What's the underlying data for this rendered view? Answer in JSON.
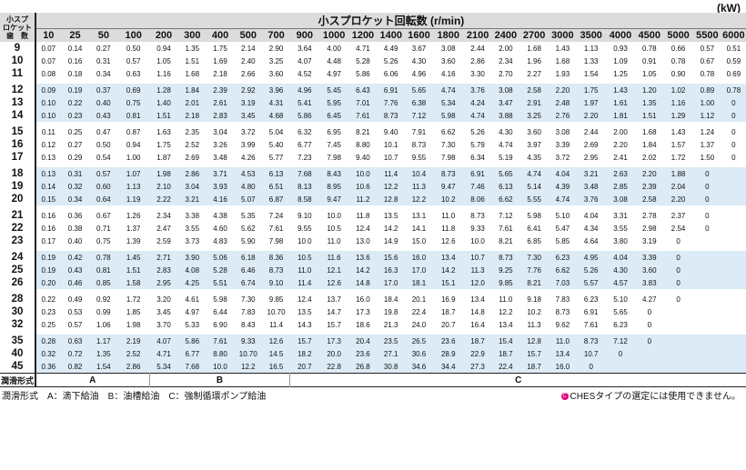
{
  "unit": "(kW)",
  "header": {
    "label_lines": [
      "小スプ",
      "ロケット",
      "歯　数"
    ],
    "title": "小スプロケット回転数 (r/min)",
    "speeds": [
      "10",
      "25",
      "50",
      "100",
      "200",
      "300",
      "400",
      "500",
      "700",
      "900",
      "1000",
      "1200",
      "1400",
      "1600",
      "1800",
      "2100",
      "2400",
      "2700",
      "3000",
      "3500",
      "4000",
      "4500",
      "5000",
      "5500",
      "6000"
    ]
  },
  "groups": [
    {
      "rows": [
        {
          "teeth": "9",
          "values": [
            "0.07",
            "0.14",
            "0.27",
            "0.50",
            "0.94",
            "1.35",
            "1.75",
            "2.14",
            "2.90",
            "3.64",
            "4.00",
            "4.71",
            "4.49",
            "3.67",
            "3.08",
            "2.44",
            "2.00",
            "1.68",
            "1.43",
            "1.13",
            "0.93",
            "0.78",
            "0.66",
            "0.57",
            "0.51"
          ]
        },
        {
          "teeth": "10",
          "values": [
            "0.07",
            "0.16",
            "0.31",
            "0.57",
            "1.05",
            "1.51",
            "1.69",
            "2.40",
            "3.25",
            "4.07",
            "4.48",
            "5.28",
            "5.26",
            "4.30",
            "3.60",
            "2.86",
            "2.34",
            "1.96",
            "1.68",
            "1.33",
            "1.09",
            "0.91",
            "0.78",
            "0.67",
            "0.59"
          ]
        },
        {
          "teeth": "11",
          "values": [
            "0.08",
            "0.18",
            "0.34",
            "0.63",
            "1.16",
            "1.68",
            "2.18",
            "2.66",
            "3.60",
            "4.52",
            "4.97",
            "5.86",
            "6.06",
            "4.96",
            "4.16",
            "3.30",
            "2.70",
            "2.27",
            "1.93",
            "1.54",
            "1.25",
            "1.05",
            "0.90",
            "0.78",
            "0.69"
          ]
        }
      ]
    },
    {
      "rows": [
        {
          "teeth": "12",
          "values": [
            "0.09",
            "0.19",
            "0.37",
            "0.69",
            "1.28",
            "1.84",
            "2.39",
            "2.92",
            "3.96",
            "4.96",
            "5.45",
            "6.43",
            "6.91",
            "5.65",
            "4.74",
            "3.76",
            "3.08",
            "2.58",
            "2.20",
            "1.75",
            "1.43",
            "1.20",
            "1.02",
            "0.89",
            "0.78"
          ]
        },
        {
          "teeth": "13",
          "values": [
            "0.10",
            "0.22",
            "0.40",
            "0.75",
            "1.40",
            "2.01",
            "2.61",
            "3.19",
            "4.31",
            "5.41",
            "5.95",
            "7.01",
            "7.76",
            "6.38",
            "5.34",
            "4.24",
            "3.47",
            "2.91",
            "2.48",
            "1.97",
            "1.61",
            "1.35",
            "1.16",
            "1.00",
            "0"
          ]
        },
        {
          "teeth": "14",
          "values": [
            "0.10",
            "0.23",
            "0.43",
            "0.81",
            "1.51",
            "2.18",
            "2.83",
            "3.45",
            "4.68",
            "5.86",
            "6.45",
            "7.61",
            "8.73",
            "7.12",
            "5.98",
            "4.74",
            "3.88",
            "3.25",
            "2.76",
            "2.20",
            "1.81",
            "1.51",
            "1.29",
            "1.12",
            "0"
          ]
        }
      ]
    },
    {
      "rows": [
        {
          "teeth": "15",
          "values": [
            "0.11",
            "0.25",
            "0.47",
            "0.87",
            "1.63",
            "2.35",
            "3.04",
            "3.72",
            "5.04",
            "6.32",
            "6.95",
            "8.21",
            "9.40",
            "7.91",
            "6.62",
            "5.26",
            "4.30",
            "3.60",
            "3.08",
            "2.44",
            "2.00",
            "1.68",
            "1.43",
            "1.24",
            "0"
          ]
        },
        {
          "teeth": "16",
          "values": [
            "0.12",
            "0.27",
            "0.50",
            "0.94",
            "1.75",
            "2.52",
            "3.26",
            "3.99",
            "5.40",
            "6.77",
            "7.45",
            "8.80",
            "10.1",
            "8.73",
            "7.30",
            "5.79",
            "4.74",
            "3.97",
            "3.39",
            "2.69",
            "2.20",
            "1.84",
            "1.57",
            "1.37",
            "0"
          ]
        },
        {
          "teeth": "17",
          "values": [
            "0.13",
            "0.29",
            "0.54",
            "1.00",
            "1.87",
            "2.69",
            "3.48",
            "4.26",
            "5.77",
            "7.23",
            "7.98",
            "9.40",
            "10.7",
            "9.55",
            "7.98",
            "6.34",
            "5.19",
            "4.35",
            "3.72",
            "2.95",
            "2.41",
            "2.02",
            "1.72",
            "1.50",
            "0"
          ]
        }
      ]
    },
    {
      "rows": [
        {
          "teeth": "18",
          "values": [
            "0.13",
            "0.31",
            "0.57",
            "1.07",
            "1.98",
            "2.86",
            "3.71",
            "4.53",
            "6.13",
            "7.68",
            "8.43",
            "10.0",
            "11.4",
            "10.4",
            "8.73",
            "6.91",
            "5.65",
            "4.74",
            "4.04",
            "3.21",
            "2.63",
            "2.20",
            "1.88",
            "0",
            ""
          ]
        },
        {
          "teeth": "19",
          "values": [
            "0.14",
            "0.32",
            "0.60",
            "1.13",
            "2.10",
            "3.04",
            "3.93",
            "4.80",
            "6.51",
            "8.13",
            "8.95",
            "10.6",
            "12.2",
            "11.3",
            "9.47",
            "7.46",
            "6.13",
            "5.14",
            "4.39",
            "3.48",
            "2.85",
            "2.39",
            "2.04",
            "0",
            ""
          ]
        },
        {
          "teeth": "20",
          "values": [
            "0.15",
            "0.34",
            "0.64",
            "1.19",
            "2.22",
            "3.21",
            "4.16",
            "5.07",
            "6.87",
            "8.58",
            "9.47",
            "11.2",
            "12.8",
            "12.2",
            "10.2",
            "8.06",
            "6.62",
            "5.55",
            "4.74",
            "3.76",
            "3.08",
            "2.58",
            "2.20",
            "0",
            ""
          ]
        }
      ]
    },
    {
      "rows": [
        {
          "teeth": "21",
          "values": [
            "0.16",
            "0.36",
            "0.67",
            "1.26",
            "2.34",
            "3.38",
            "4.38",
            "5.35",
            "7.24",
            "9.10",
            "10.0",
            "11.8",
            "13.5",
            "13.1",
            "11.0",
            "8.73",
            "7.12",
            "5.98",
            "5.10",
            "4.04",
            "3.31",
            "2.78",
            "2.37",
            "0",
            ""
          ]
        },
        {
          "teeth": "22",
          "values": [
            "0.16",
            "0.38",
            "0.71",
            "1.37",
            "2.47",
            "3.55",
            "4.60",
            "5.62",
            "7.61",
            "9.55",
            "10.5",
            "12.4",
            "14.2",
            "14.1",
            "11.8",
            "9.33",
            "7.61",
            "6.41",
            "5.47",
            "4.34",
            "3.55",
            "2.98",
            "2.54",
            "0",
            ""
          ]
        },
        {
          "teeth": "23",
          "values": [
            "0.17",
            "0.40",
            "0.75",
            "1.39",
            "2.59",
            "3.73",
            "4.83",
            "5.90",
            "7.98",
            "10.0",
            "11.0",
            "13.0",
            "14.9",
            "15.0",
            "12.6",
            "10.0",
            "8.21",
            "6.85",
            "5.85",
            "4.64",
            "3.80",
            "3.19",
            "0",
            "",
            ""
          ]
        }
      ]
    },
    {
      "rows": [
        {
          "teeth": "24",
          "values": [
            "0.19",
            "0.42",
            "0.78",
            "1.45",
            "2.71",
            "3.90",
            "5.06",
            "6.18",
            "8.36",
            "10.5",
            "11.6",
            "13.6",
            "15.6",
            "16.0",
            "13.4",
            "10.7",
            "8.73",
            "7.30",
            "6.23",
            "4.95",
            "4.04",
            "3.39",
            "0",
            "",
            ""
          ]
        },
        {
          "teeth": "25",
          "values": [
            "0.19",
            "0.43",
            "0.81",
            "1.51",
            "2.83",
            "4.08",
            "5.28",
            "6.46",
            "8.73",
            "11.0",
            "12.1",
            "14.2",
            "16.3",
            "17.0",
            "14.2",
            "11.3",
            "9.25",
            "7.76",
            "6.62",
            "5.26",
            "4.30",
            "3.60",
            "0",
            "",
            ""
          ]
        },
        {
          "teeth": "26",
          "values": [
            "0.20",
            "0.46",
            "0.85",
            "1.58",
            "2.95",
            "4.25",
            "5.51",
            "6.74",
            "9.10",
            "11.4",
            "12.6",
            "14.8",
            "17.0",
            "18.1",
            "15.1",
            "12.0",
            "9.85",
            "8.21",
            "7.03",
            "5.57",
            "4.57",
            "3.83",
            "0",
            "",
            ""
          ]
        }
      ]
    },
    {
      "rows": [
        {
          "teeth": "28",
          "values": [
            "0.22",
            "0.49",
            "0.92",
            "1.72",
            "3.20",
            "4.61",
            "5.98",
            "7.30",
            "9.85",
            "12.4",
            "13.7",
            "16.0",
            "18.4",
            "20.1",
            "16.9",
            "13.4",
            "11.0",
            "9.18",
            "7.83",
            "6.23",
            "5.10",
            "4.27",
            "0",
            "",
            ""
          ]
        },
        {
          "teeth": "30",
          "values": [
            "0.23",
            "0.53",
            "0.99",
            "1.85",
            "3.45",
            "4.97",
            "6.44",
            "7.83",
            "10.70",
            "13.5",
            "14.7",
            "17.3",
            "19.8",
            "22.4",
            "18.7",
            "14.8",
            "12.2",
            "10.2",
            "8.73",
            "6.91",
            "5.65",
            "0",
            "",
            "",
            ""
          ]
        },
        {
          "teeth": "32",
          "values": [
            "0.25",
            "0.57",
            "1.06",
            "1.98",
            "3.70",
            "5.33",
            "6.90",
            "8.43",
            "11.4",
            "14.3",
            "15.7",
            "18.6",
            "21.3",
            "24.0",
            "20.7",
            "16.4",
            "13.4",
            "11.3",
            "9.62",
            "7.61",
            "6.23",
            "0",
            "",
            "",
            ""
          ]
        }
      ]
    },
    {
      "rows": [
        {
          "teeth": "35",
          "values": [
            "0.28",
            "0.63",
            "1.17",
            "2.19",
            "4.07",
            "5.86",
            "7.61",
            "9.33",
            "12.6",
            "15.7",
            "17.3",
            "20.4",
            "23.5",
            "26.5",
            "23.6",
            "18.7",
            "15.4",
            "12.8",
            "11.0",
            "8.73",
            "7.12",
            "0",
            "",
            "",
            ""
          ]
        },
        {
          "teeth": "40",
          "values": [
            "0.32",
            "0.72",
            "1.35",
            "2.52",
            "4.71",
            "6.77",
            "8.80",
            "10.70",
            "14.5",
            "18.2",
            "20.0",
            "23.6",
            "27.1",
            "30.6",
            "28.9",
            "22.9",
            "18.7",
            "15.7",
            "13.4",
            "10.7",
            "0",
            "",
            "",
            "",
            ""
          ]
        },
        {
          "teeth": "45",
          "values": [
            "0.36",
            "0.82",
            "1.54",
            "2.86",
            "5.34",
            "7.68",
            "10.0",
            "12.2",
            "16.5",
            "20.7",
            "22.8",
            "26.8",
            "30.8",
            "34.6",
            "34.4",
            "27.3",
            "22.4",
            "18.7",
            "16.0",
            "0",
            "",
            "",
            "",
            "",
            ""
          ]
        }
      ]
    }
  ],
  "lubrication": {
    "label": "潤滑形式",
    "a": "A",
    "b": "B",
    "c": "C"
  },
  "legend": {
    "text": "潤滑形式　A：滴下給油　B：油槽給油　C：強制循環ポンプ給油",
    "note_mark": "C",
    "note": "CHESタイプの選定には使用できません。"
  }
}
